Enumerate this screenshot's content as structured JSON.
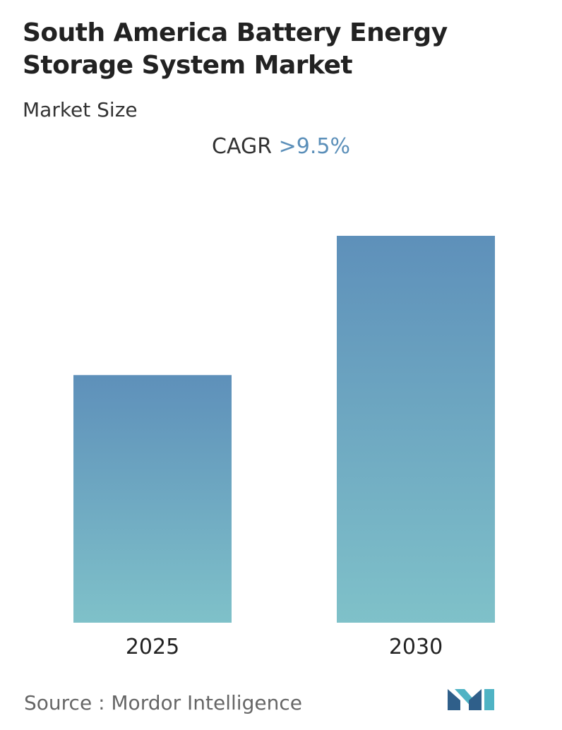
{
  "header": {
    "title": "South America Battery Energy Storage System Market",
    "subtitle": "Market Size"
  },
  "cagr": {
    "label": "CAGR",
    "value": ">9.5%"
  },
  "footer": {
    "source": "Source :  Mordor Intelligence"
  },
  "colors": {
    "bar_top": "#5e90ba",
    "bar_bottom": "#7fc1c9",
    "accent": "#5b8fb9",
    "logo_dark": "#2f5f8a",
    "logo_light": "#4fb3c4"
  },
  "chart_data": {
    "type": "bar",
    "categories": [
      "2025",
      "2030"
    ],
    "values": [
      0.64,
      1.0
    ],
    "value_scale": "relative (no axis printed)",
    "title": "South America Battery Energy Storage System Market",
    "subtitle": "Market Size",
    "annotation": "CAGR >9.5%",
    "grid": false,
    "legend": "none"
  }
}
